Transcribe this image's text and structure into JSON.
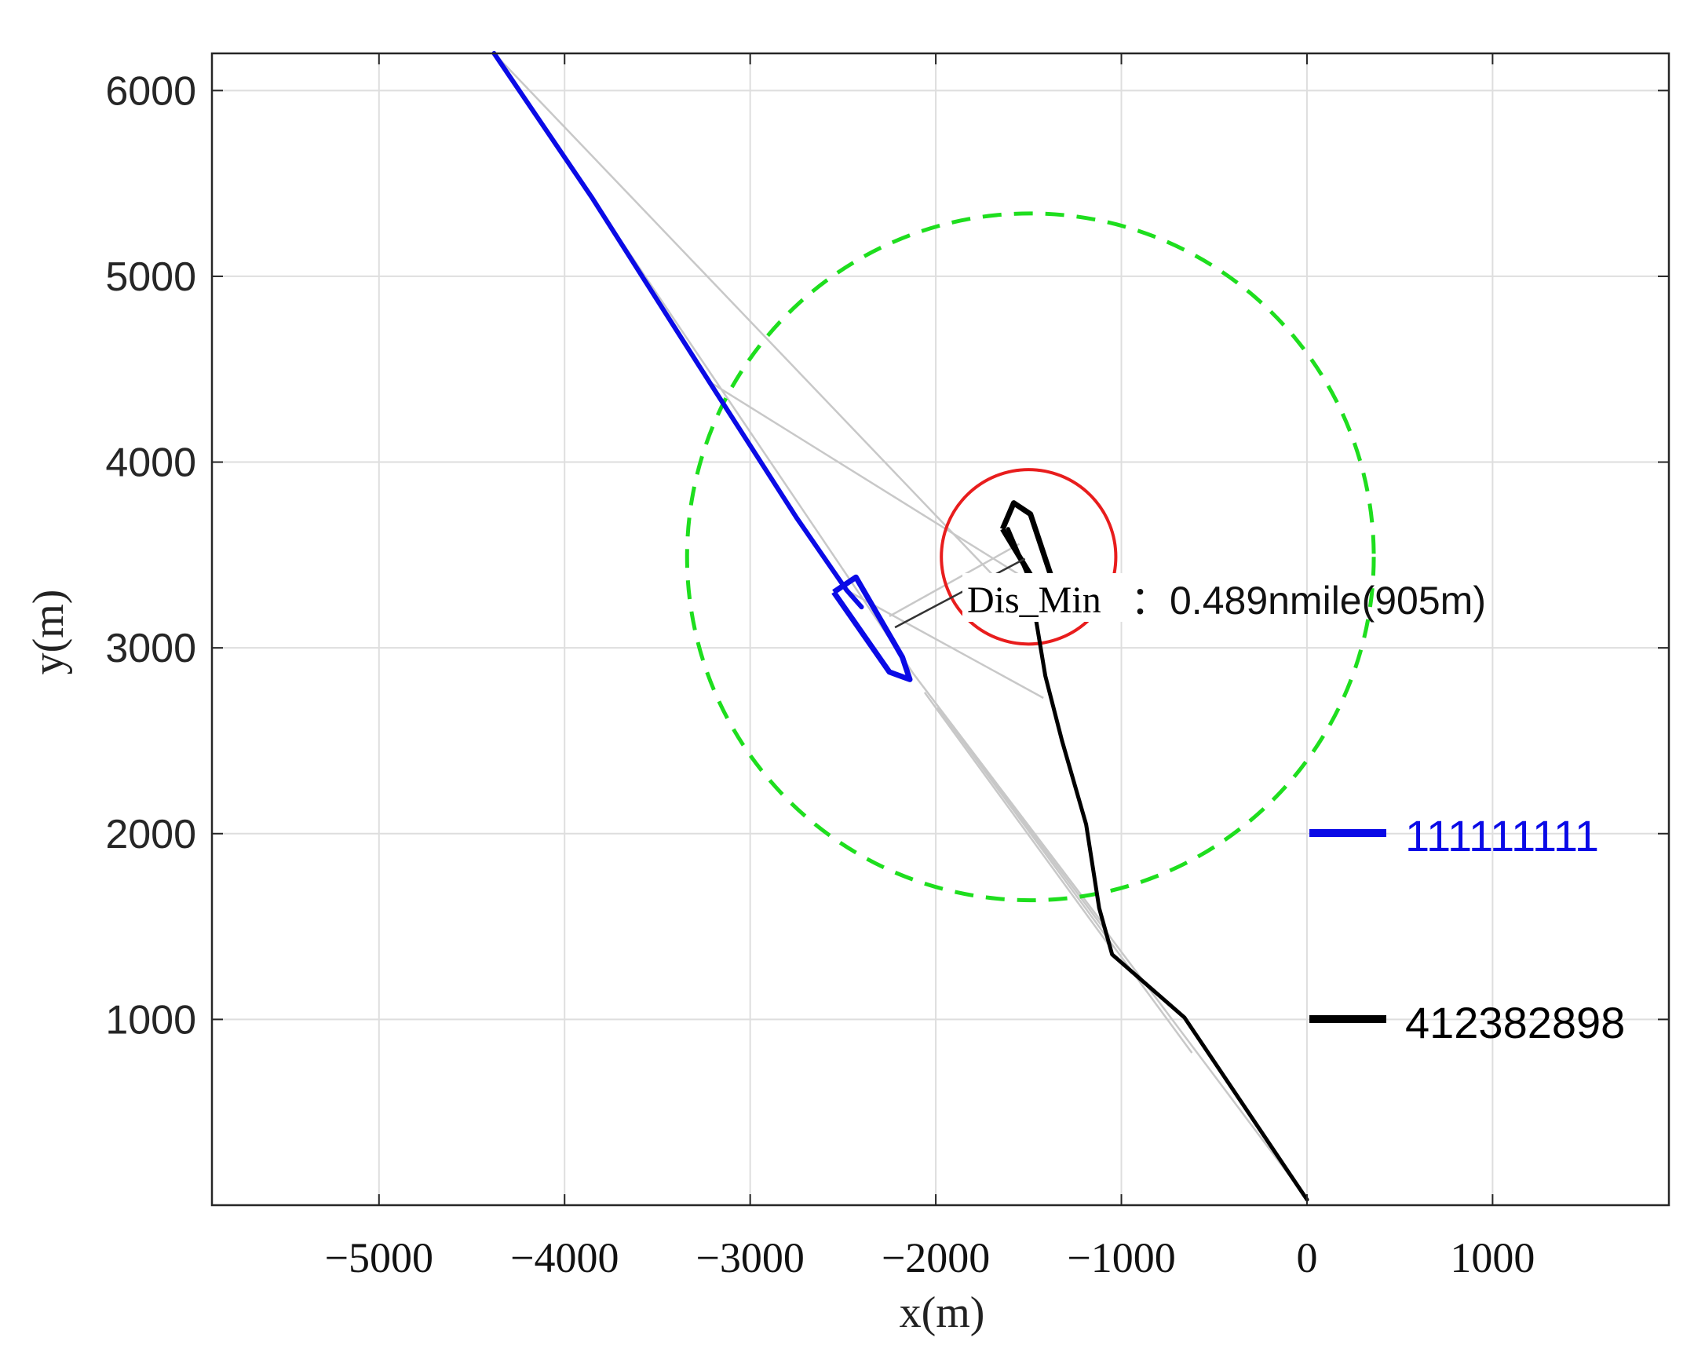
{
  "chart_data": {
    "type": "line",
    "title": "",
    "xlabel": "x(m)",
    "ylabel": "y(m)",
    "xlim": [
      -5900,
      1950
    ],
    "ylim": [
      0,
      6200
    ],
    "xticks": [
      -5000,
      -4000,
      -3000,
      -2000,
      -1000,
      0,
      1000
    ],
    "xtick_labels": [
      "−5000",
      "−4000",
      "−3000",
      "−2000",
      "−1000",
      "0",
      "1000"
    ],
    "yticks": [
      1000,
      2000,
      3000,
      4000,
      5000,
      6000
    ],
    "ytick_labels": [
      "1000",
      "2000",
      "3000",
      "4000",
      "5000",
      "6000"
    ],
    "grid": true,
    "legend_position": "right",
    "series": [
      {
        "name": "111111111",
        "color": "#0a0ae6",
        "points": [
          [
            -4380,
            6200
          ],
          [
            -3850,
            5420
          ],
          [
            -3200,
            4400
          ],
          [
            -2750,
            3700
          ],
          [
            -2480,
            3310
          ],
          [
            -2400,
            3220
          ]
        ]
      },
      {
        "name": "412382898",
        "color": "#000000",
        "points": [
          [
            0,
            30
          ],
          [
            -660,
            1010
          ],
          [
            -1050,
            1350
          ],
          [
            -1120,
            1600
          ],
          [
            -1190,
            2050
          ],
          [
            -1320,
            2500
          ],
          [
            -1410,
            2850
          ],
          [
            -1460,
            3150
          ],
          [
            -1500,
            3380
          ],
          [
            -1610,
            3640
          ]
        ]
      }
    ],
    "circles": [
      {
        "label": "green-dashed",
        "cx": -1490,
        "cy": 3490,
        "r": 1850,
        "color": "#1ede1e",
        "style": "dashed"
      },
      {
        "label": "red",
        "cx": -1500,
        "cy": 3490,
        "r": 470,
        "color": "#e81d1d",
        "style": "solid"
      }
    ],
    "ship_markers": [
      {
        "series": "111111111",
        "color": "#0a0ae6",
        "outline": [
          [
            -2550,
            3300
          ],
          [
            -2430,
            3380
          ],
          [
            -2180,
            2950
          ],
          [
            -2140,
            2830
          ],
          [
            -2250,
            2870
          ],
          [
            -2550,
            3300
          ]
        ]
      },
      {
        "series": "412382898",
        "color": "#000000",
        "outline": [
          [
            -1640,
            3640
          ],
          [
            -1580,
            3780
          ],
          [
            -1490,
            3720
          ],
          [
            -1380,
            3390
          ],
          [
            -1470,
            3360
          ],
          [
            -1640,
            3640
          ]
        ]
      }
    ],
    "grey_links": [
      [
        [
          -4380,
          6200
        ],
        [
          -1490,
          3180
        ]
      ],
      [
        [
          -3850,
          5420
        ],
        [
          -2120,
          2860
        ]
      ],
      [
        [
          -3200,
          4420
        ],
        [
          -1480,
          3350
        ]
      ],
      [
        [
          -2480,
          3310
        ],
        [
          -1420,
          2730
        ]
      ],
      [
        [
          -2250,
          3170
        ],
        [
          -1550,
          3560
        ]
      ],
      [
        [
          -2120,
          2860
        ],
        [
          -1110,
          1530
        ]
      ],
      [
        [
          -2060,
          2760
        ],
        [
          -1060,
          1390
        ]
      ],
      [
        [
          -1990,
          2680
        ],
        [
          -620,
          820
        ]
      ],
      [
        [
          -1990,
          2680
        ],
        [
          -5,
          40
        ]
      ]
    ],
    "annotation": {
      "label": "Dis_Min",
      "value": "：0.489nmile(905m)",
      "leader": [
        [
          -2220,
          3110
        ],
        [
          -1520,
          3480
        ]
      ]
    }
  },
  "legend": [
    {
      "label": "111111111",
      "color": "#0a0ae6"
    },
    {
      "label": "412382898",
      "color": "#000000"
    }
  ]
}
